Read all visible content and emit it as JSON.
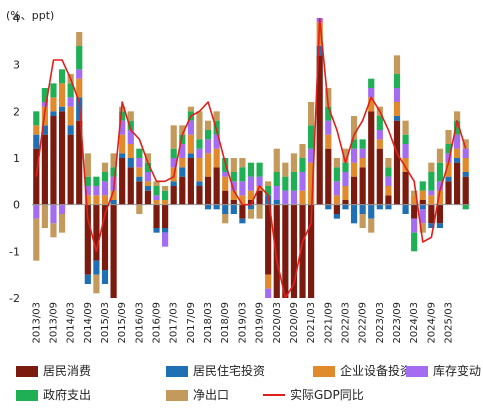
{
  "chart_data": {
    "type": "bar",
    "unit_label": "(%、ppt)",
    "ylim": [
      -2,
      4
    ],
    "yticks": [
      -2,
      -1,
      0,
      1,
      2,
      3,
      4
    ],
    "grid": false,
    "legend_position": "bottom",
    "categories": [
      "2013/03",
      "2013/06",
      "2013/09",
      "2013/12",
      "2014/03",
      "2014/06",
      "2014/09",
      "2014/12",
      "2015/03",
      "2015/06",
      "2015/09",
      "2015/12",
      "2016/03",
      "2016/06",
      "2016/09",
      "2016/12",
      "2017/03",
      "2017/06",
      "2017/09",
      "2017/12",
      "2018/03",
      "2018/06",
      "2018/09",
      "2018/12",
      "2019/03",
      "2019/06",
      "2019/09",
      "2019/12",
      "2020/03",
      "2020/06",
      "2020/09",
      "2020/12",
      "2021/03",
      "2021/06",
      "2021/09",
      "2021/12",
      "2022/03",
      "2022/06",
      "2022/09",
      "2022/12",
      "2023/03",
      "2023/06",
      "2023/09",
      "2023/12",
      "2024/03",
      "2024/06",
      "2024/09",
      "2024/12",
      "2025/03",
      "2025/06",
      "2025/09"
    ],
    "xtick_labels": [
      "2013/03",
      "2013/09",
      "2014/03",
      "2014/09",
      "2015/03",
      "2015/09",
      "2016/03",
      "2016/09",
      "2017/03",
      "2017/09",
      "2018/03",
      "2018/09",
      "2019/03",
      "2019/09",
      "2020/03",
      "2020/09",
      "2021/03",
      "2021/09",
      "2022/03",
      "2022/09",
      "2023/03",
      "2023/09",
      "2024/03",
      "2024/09",
      "2025/03"
    ],
    "series": [
      {
        "name": "居民消费",
        "color": "#7B1A0E",
        "type": "bar",
        "values": [
          1.2,
          1.5,
          1.9,
          2.0,
          1.5,
          1.8,
          -1.5,
          -1.2,
          -1.4,
          -2.2,
          1.0,
          0.8,
          0.5,
          0.3,
          -0.5,
          -0.5,
          0.4,
          0.6,
          1.0,
          0.4,
          0.6,
          0.8,
          0.3,
          0.1,
          -0.3,
          0.1,
          0.3,
          -1.5,
          -2.5,
          -2.5,
          -2.5,
          -2.5,
          -2.0,
          3.2,
          1.2,
          -0.2,
          0.1,
          0.6,
          0.8,
          2.0,
          1.2,
          0.2,
          1.8,
          0.7,
          -0.3,
          0.1,
          -0.4,
          -0.4,
          0.5,
          0.9,
          0.6
        ]
      },
      {
        "name": "居民住宅投资",
        "color": "#1F6FB5",
        "type": "bar",
        "values": [
          0.3,
          0.2,
          0.1,
          0.1,
          0.2,
          0.5,
          -0.2,
          -0.3,
          -0.3,
          0.1,
          0.1,
          0.2,
          0.1,
          0.1,
          -0.1,
          -0.1,
          0.1,
          0.2,
          0.1,
          0.1,
          -0.1,
          -0.1,
          -0.2,
          -0.2,
          -0.1,
          -0.1,
          0.0,
          0.2,
          0.1,
          -0.4,
          -0.3,
          -0.4,
          0.0,
          0.2,
          -0.1,
          -0.1,
          -0.1,
          -0.4,
          -0.2,
          -0.3,
          -0.1,
          -0.1,
          0.1,
          -0.2,
          0.0,
          -0.1,
          -0.1,
          -0.1,
          0.1,
          0.1,
          0.1
        ]
      },
      {
        "name": "企业设备投资",
        "color": "#E08A2C",
        "type": "bar",
        "values": [
          0.2,
          0.4,
          0.3,
          0.5,
          0.4,
          0.4,
          0.2,
          0.2,
          0.2,
          0.2,
          0.4,
          0.3,
          0.2,
          0.1,
          0.1,
          0.1,
          0.3,
          0.2,
          0.4,
          0.5,
          0.5,
          0.4,
          0.3,
          0.2,
          0.2,
          0.2,
          0.1,
          -0.3,
          -0.5,
          -0.3,
          -0.4,
          0.3,
          0.9,
          0.5,
          0.3,
          0.2,
          0.3,
          0.3,
          0.2,
          0.3,
          0.2,
          0.2,
          0.3,
          0.3,
          0.2,
          0.2,
          0.2,
          0.3,
          0.3,
          0.2,
          0.3
        ]
      },
      {
        "name": "库存变动",
        "color": "#A46CF0",
        "type": "bar",
        "values": [
          -0.3,
          0.1,
          -0.4,
          -0.2,
          0.2,
          0.2,
          0.2,
          0.2,
          0.3,
          0.3,
          0.3,
          0.3,
          0.2,
          0.2,
          0.1,
          -0.3,
          0.2,
          0.3,
          0.3,
          0.2,
          0.3,
          0.3,
          0.1,
          0.2,
          0.3,
          0.3,
          0.2,
          -0.2,
          0.3,
          0.3,
          0.3,
          0.4,
          0.3,
          0.3,
          0.3,
          0.3,
          0.3,
          0.3,
          0.2,
          0.2,
          0.2,
          0.2,
          0.3,
          0.3,
          -0.3,
          -0.3,
          0.1,
          0.2,
          0.2,
          0.3,
          0.2
        ]
      },
      {
        "name": "政府支出",
        "color": "#1FAF55",
        "type": "bar",
        "values": [
          0.3,
          0.3,
          0.3,
          0.3,
          0.3,
          0.5,
          0.2,
          0.2,
          0.2,
          0.2,
          0.2,
          0.2,
          0.2,
          0.2,
          0.2,
          0.2,
          0.2,
          0.2,
          0.2,
          0.2,
          0.2,
          0.3,
          0.3,
          0.2,
          0.3,
          0.3,
          0.3,
          0.2,
          0.3,
          0.3,
          0.4,
          0.3,
          0.5,
          0.4,
          0.3,
          0.3,
          0.2,
          0.2,
          0.2,
          0.2,
          0.3,
          0.2,
          0.3,
          0.2,
          -0.4,
          0.2,
          0.4,
          0.4,
          0.2,
          0.3,
          -0.1
        ]
      },
      {
        "name": "净出口",
        "color": "#C49A5C",
        "type": "bar",
        "values": [
          -0.9,
          -0.5,
          -0.3,
          -0.4,
          0.2,
          0.3,
          0.5,
          -0.4,
          0.2,
          0.3,
          0.1,
          0.2,
          -0.2,
          0.2,
          0.1,
          0.1,
          0.5,
          0.2,
          0.1,
          0.6,
          0.2,
          0.2,
          -0.2,
          0.3,
          0.2,
          -0.2,
          -0.3,
          0.1,
          0.5,
          0.3,
          0.4,
          0.3,
          0.5,
          0.4,
          0.4,
          0.2,
          0.3,
          0.5,
          -0.3,
          -0.3,
          0.2,
          0.2,
          0.4,
          0.3,
          0.1,
          -0.2,
          0.2,
          0.3,
          0.3,
          0.2,
          0.2
        ]
      },
      {
        "name": "实际GDP同比",
        "color": "#E0201C",
        "type": "line",
        "values": [
          0.6,
          2.0,
          3.1,
          3.1,
          2.7,
          2.2,
          -0.3,
          -1.0,
          -0.2,
          0.3,
          2.2,
          1.6,
          1.4,
          0.9,
          0.5,
          0.5,
          0.6,
          1.5,
          1.9,
          2.0,
          2.2,
          1.6,
          0.9,
          0.3,
          0.0,
          0.0,
          0.4,
          0.2,
          -1.2,
          -2.0,
          -1.7,
          -0.8,
          -0.4,
          4.0,
          2.1,
          1.6,
          0.9,
          1.5,
          1.8,
          2.3,
          2.0,
          1.6,
          1.1,
          0.8,
          0.5,
          -0.8,
          -0.7,
          0.3,
          0.9,
          1.8,
          1.2
        ]
      }
    ]
  }
}
